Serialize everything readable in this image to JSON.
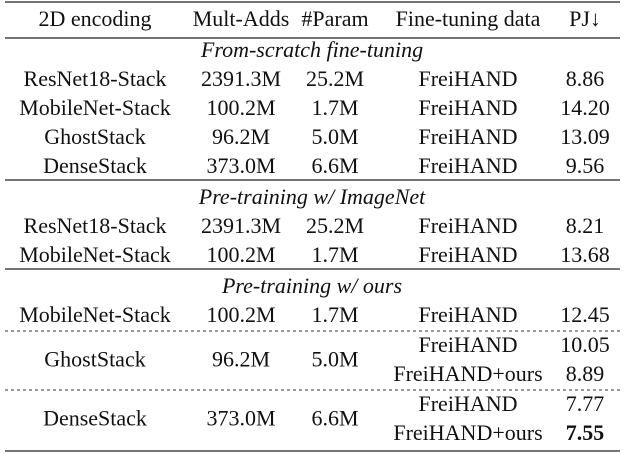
{
  "table": {
    "header": [
      "2D encoding",
      "Mult-Adds",
      "#Param",
      "Fine-tuning data",
      "PJ↓"
    ],
    "sections": [
      {
        "title": "From-scratch fine-tuning",
        "rows": [
          {
            "encoding": "ResNet18-Stack",
            "mult_adds": "2391.3M",
            "params": "25.2M",
            "data": [
              "FreiHAND"
            ],
            "pj": [
              "8.86"
            ]
          },
          {
            "encoding": "MobileNet-Stack",
            "mult_adds": "100.2M",
            "params": "1.7M",
            "data": [
              "FreiHAND"
            ],
            "pj": [
              "14.20"
            ]
          },
          {
            "encoding": "GhostStack",
            "mult_adds": "96.2M",
            "params": "5.0M",
            "data": [
              "FreiHAND"
            ],
            "pj": [
              "13.09"
            ]
          },
          {
            "encoding": "DenseStack",
            "mult_adds": "373.0M",
            "params": "6.6M",
            "data": [
              "FreiHAND"
            ],
            "pj": [
              "9.56"
            ]
          }
        ]
      },
      {
        "title": "Pre-training w/ ImageNet",
        "rows": [
          {
            "encoding": "ResNet18-Stack",
            "mult_adds": "2391.3M",
            "params": "25.2M",
            "data": [
              "FreiHAND"
            ],
            "pj": [
              "8.21"
            ]
          },
          {
            "encoding": "MobileNet-Stack",
            "mult_adds": "100.2M",
            "params": "1.7M",
            "data": [
              "FreiHAND"
            ],
            "pj": [
              "13.68"
            ]
          }
        ]
      },
      {
        "title": "Pre-training w/ ours",
        "rows": [
          {
            "encoding": "MobileNet-Stack",
            "mult_adds": "100.2M",
            "params": "1.7M",
            "data": [
              "FreiHAND"
            ],
            "pj": [
              "12.45"
            ]
          },
          {
            "encoding": "GhostStack",
            "mult_adds": "96.2M",
            "params": "5.0M",
            "data": [
              "FreiHAND",
              "FreiHAND+ours"
            ],
            "pj": [
              "10.05",
              "8.89"
            ]
          },
          {
            "encoding": "DenseStack",
            "mult_adds": "373.0M",
            "params": "6.6M",
            "data": [
              "FreiHAND",
              "FreiHAND+ours"
            ],
            "pj": [
              "7.77",
              "7.55"
            ]
          }
        ]
      }
    ]
  }
}
